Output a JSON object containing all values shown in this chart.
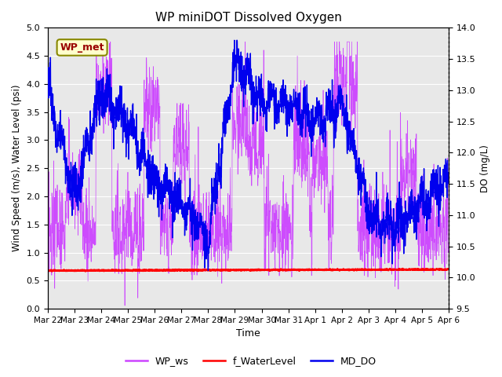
{
  "title": "WP miniDOT Dissolved Oxygen",
  "xlabel": "Time",
  "ylabel_left": "Wind Speed (m/s), Water Level (psi)",
  "ylabel_right": "DO (mg/L)",
  "ylim_left": [
    0.0,
    5.0
  ],
  "ylim_right": [
    9.5,
    14.0
  ],
  "yticks_left": [
    0.0,
    0.5,
    1.0,
    1.5,
    2.0,
    2.5,
    3.0,
    3.5,
    4.0,
    4.5,
    5.0
  ],
  "yticks_right": [
    9.5,
    10.0,
    10.5,
    11.0,
    11.5,
    12.0,
    12.5,
    13.0,
    13.5,
    14.0
  ],
  "color_ws": "#CC44FF",
  "color_wl": "#FF0000",
  "color_do": "#0000EE",
  "legend_label_ws": "WP_ws",
  "legend_label_wl": "f_WaterLevel",
  "legend_label_do": "MD_DO",
  "annotation_text": "WP_met",
  "annotation_color": "#990000",
  "annotation_bg": "#FFFFCC",
  "annotation_border": "#888800",
  "bg_color": "#E8E8E8",
  "n_points": 2000,
  "water_level_base": 0.68,
  "seed": 7
}
